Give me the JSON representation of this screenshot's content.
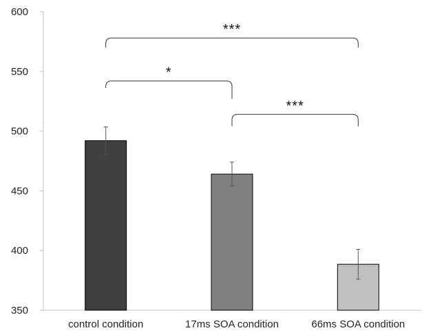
{
  "chart_data": {
    "type": "bar",
    "title": "",
    "xlabel": "",
    "ylabel": "",
    "ylim": [
      350,
      600
    ],
    "yticks": [
      350,
      400,
      450,
      500,
      550,
      600
    ],
    "categories": [
      "control condition",
      "17ms SOA condition",
      "66ms SOA condition"
    ],
    "values": [
      492,
      464,
      388.5
    ],
    "errors": [
      11.5,
      10,
      12.5
    ],
    "bar_colors": [
      "#404040",
      "#808080",
      "#c0c0c0"
    ],
    "grid": false,
    "significance": [
      {
        "from": 0,
        "to": 1,
        "label": "*",
        "y": 542,
        "y_start": 536,
        "y_end": 527
      },
      {
        "from": 0,
        "to": 2,
        "label": "***",
        "y": 578,
        "y_start": 570,
        "y_end": 570
      },
      {
        "from": 1,
        "to": 2,
        "label": "***",
        "y": 514,
        "y_start": 504,
        "y_end": 504
      }
    ]
  }
}
